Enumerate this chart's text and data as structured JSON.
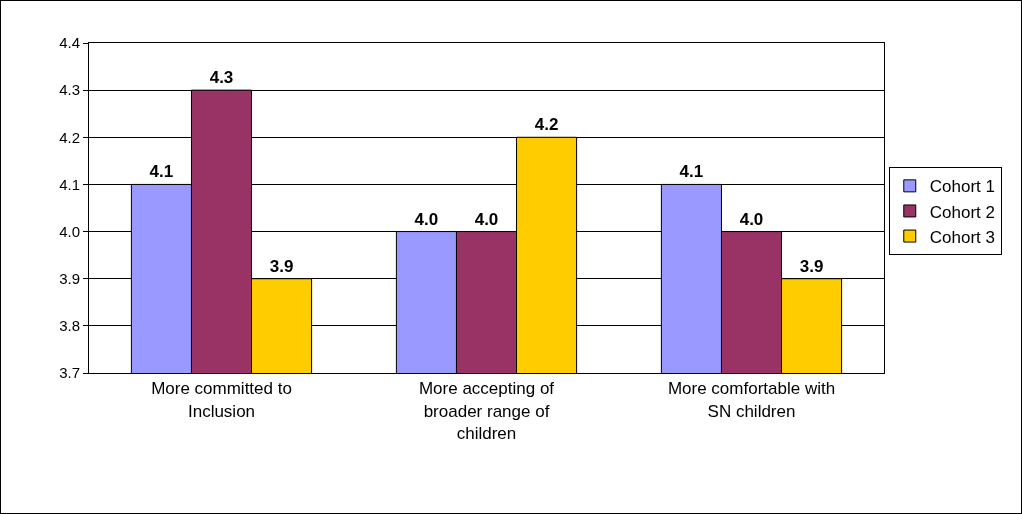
{
  "chart_data": {
    "type": "bar",
    "categories": [
      "More committed to Inclusion",
      "More accepting of broader range of children",
      "More comfortable with SN children"
    ],
    "series": [
      {
        "name": "Cohort 1",
        "color": "#9999ff",
        "values": [
          4.1,
          4.0,
          4.1
        ],
        "value_labels": [
          "4.1",
          "4.0",
          "4.1"
        ]
      },
      {
        "name": "Cohort 2",
        "color": "#993366",
        "values": [
          4.3,
          4.0,
          4.0
        ],
        "value_labels": [
          "4.3",
          "4.0",
          "4.0"
        ]
      },
      {
        "name": "Cohort 3",
        "color": "#ffcc00",
        "values": [
          3.9,
          4.2,
          3.9
        ],
        "value_labels": [
          "3.9",
          "4.2",
          "3.9"
        ]
      }
    ],
    "ylim": [
      3.7,
      4.4
    ],
    "yticks": [
      3.7,
      3.8,
      3.9,
      {
        "value": 4.0,
        "label": "4.0"
      },
      4.1,
      4.2,
      4.3,
      4.4
    ],
    "grid": "y",
    "legend": "right"
  }
}
